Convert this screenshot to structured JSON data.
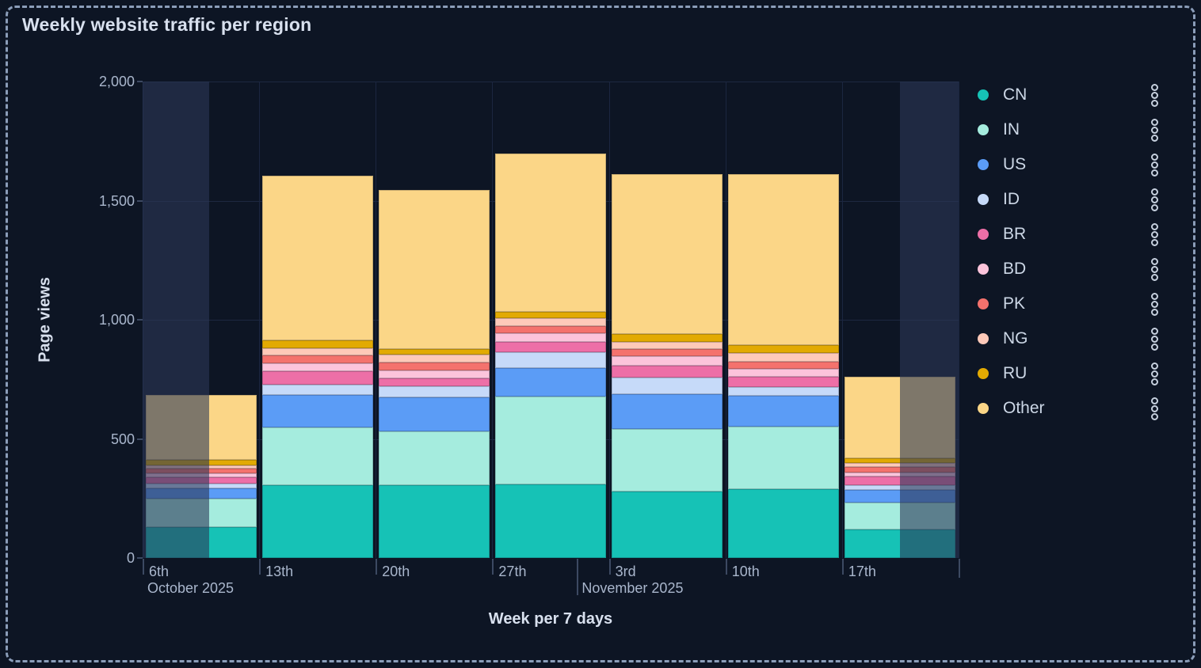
{
  "panel": {
    "title": "Weekly website traffic per region"
  },
  "axes": {
    "y": {
      "label": "Page views",
      "max": 2000,
      "ticks": [
        {
          "label": "0",
          "value": 0
        },
        {
          "label": "500",
          "value": 500
        },
        {
          "label": "1,000",
          "value": 1000
        },
        {
          "label": "1,500",
          "value": 1500
        },
        {
          "label": "2,000",
          "value": 2000
        }
      ]
    },
    "x": {
      "label": "Week per 7 days",
      "day_ticks": [
        "6th",
        "13th",
        "20th",
        "27th",
        "3rd",
        "10th",
        "17th"
      ],
      "month_labels": [
        {
          "label": "October 2025",
          "week_pos": 0,
          "divider": false
        },
        {
          "label": "November 2025",
          "week_pos": 3.727,
          "divider": true
        }
      ]
    }
  },
  "legend": {
    "position": "right",
    "menu_icon": "kebab-vertical"
  },
  "theme": {
    "background": "#0d1524",
    "grid": "#1d2840",
    "tick_text": "#a9b6cc",
    "title_text": "#d8e0ee",
    "legend_text": "#ccd7e6",
    "dashed_border": "#8b9db9",
    "out_of_range_overlay": "rgba(43,55,86,0.6)"
  },
  "chart_data": {
    "type": "bar",
    "stacked": true,
    "title": "Weekly website traffic per region",
    "xlabel": "Week per 7 days",
    "ylabel": "Page views",
    "ylim": [
      0,
      2000
    ],
    "grid": true,
    "legend_position": "right",
    "categories": [
      "Oct 6",
      "Oct 13",
      "Oct 20",
      "Oct 27",
      "Nov 3",
      "Nov 10",
      "Nov 17"
    ],
    "series": [
      {
        "name": "CN",
        "color": "#16c2b6",
        "values": [
          130,
          305,
          305,
          310,
          280,
          290,
          118
        ]
      },
      {
        "name": "IN",
        "color": "#a5ecde",
        "values": [
          118,
          243,
          228,
          367,
          263,
          262,
          114
        ]
      },
      {
        "name": "US",
        "color": "#5b9cf6",
        "values": [
          46,
          136,
          143,
          121,
          146,
          129,
          55
        ]
      },
      {
        "name": "ID",
        "color": "#c6daf9",
        "values": [
          20,
          44,
          45,
          66,
          69,
          36,
          20
        ]
      },
      {
        "name": "BR",
        "color": "#ed6fa7",
        "values": [
          26,
          55,
          33,
          44,
          50,
          44,
          35
        ]
      },
      {
        "name": "BD",
        "color": "#fcc4db",
        "values": [
          17,
          35,
          32,
          36,
          40,
          33,
          17
        ]
      },
      {
        "name": "PK",
        "color": "#f4726d",
        "values": [
          17,
          33,
          36,
          30,
          28,
          30,
          22
        ]
      },
      {
        "name": "NG",
        "color": "#fec9b9",
        "values": [
          15,
          31,
          33,
          33,
          30,
          36,
          17
        ]
      },
      {
        "name": "RU",
        "color": "#e2aa02",
        "values": [
          22,
          32,
          22,
          25,
          36,
          33,
          22
        ]
      },
      {
        "name": "Other",
        "color": "#fbd687",
        "values": [
          274,
          690,
          669,
          667,
          668,
          717,
          342
        ]
      }
    ],
    "totals": [
      685,
      1604,
      1546,
      1699,
      1610,
      1610,
      762
    ],
    "shaded_out_of_range_weeks": [
      {
        "from": 0,
        "to": 0.571
      },
      {
        "from": 6.5,
        "to": 7
      }
    ]
  }
}
